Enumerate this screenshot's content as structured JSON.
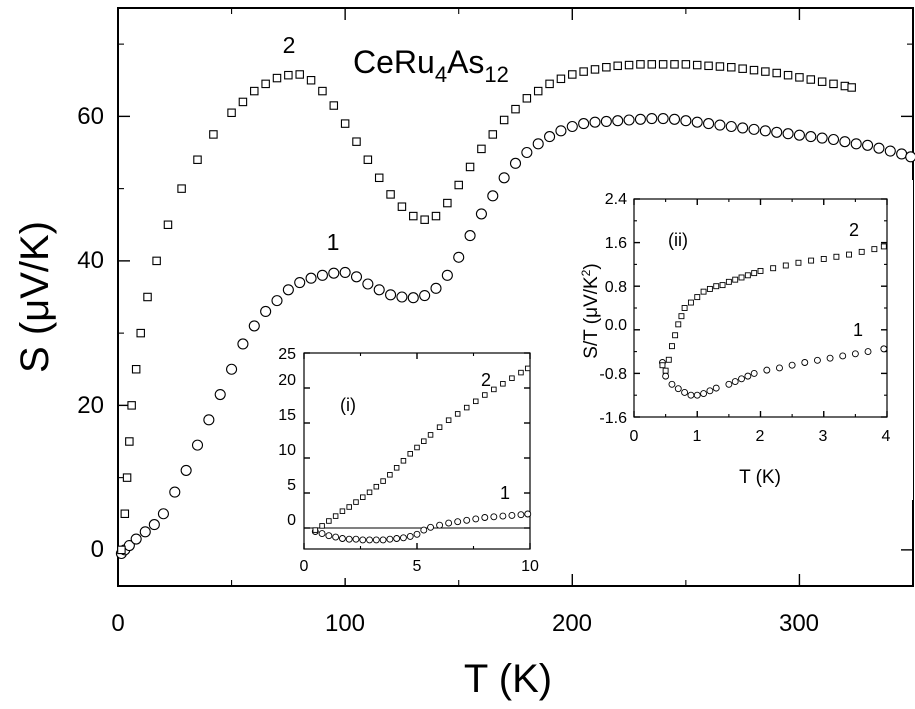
{
  "chart_data": [
    {
      "id": "main",
      "type": "scatter",
      "title": "",
      "xlabel": "T (K)",
      "ylabel": "S (μV/K)",
      "xlim": [
        0,
        350
      ],
      "ylim": [
        -5,
        75
      ],
      "xticks": [
        0,
        100,
        200,
        300
      ],
      "yticks": [
        0,
        20,
        40,
        60
      ],
      "annotation": {
        "base": "CeRu",
        "sub1": "4",
        "mid": "As",
        "sub2": "12"
      },
      "series": [
        {
          "label": "1",
          "marker": "circle",
          "points": [
            [
              1.5,
              -0.5
            ],
            [
              3,
              0
            ],
            [
              5,
              0.6
            ],
            [
              8,
              1.5
            ],
            [
              12,
              2.5
            ],
            [
              16,
              3.5
            ],
            [
              20,
              5
            ],
            [
              25,
              8
            ],
            [
              30,
              11
            ],
            [
              35,
              14.5
            ],
            [
              40,
              18
            ],
            [
              45,
              21.5
            ],
            [
              50,
              25
            ],
            [
              55,
              28.5
            ],
            [
              60,
              31
            ],
            [
              65,
              33
            ],
            [
              70,
              34.5
            ],
            [
              75,
              36
            ],
            [
              80,
              37
            ],
            [
              85,
              37.6
            ],
            [
              90,
              38
            ],
            [
              95,
              38.3
            ],
            [
              100,
              38.4
            ],
            [
              105,
              37.8
            ],
            [
              110,
              36.8
            ],
            [
              115,
              36
            ],
            [
              120,
              35.3
            ],
            [
              125,
              35
            ],
            [
              130,
              34.9
            ],
            [
              135,
              35.2
            ],
            [
              140,
              36.2
            ],
            [
              145,
              38
            ],
            [
              150,
              40.5
            ],
            [
              155,
              43.5
            ],
            [
              160,
              46.5
            ],
            [
              165,
              49
            ],
            [
              170,
              51.5
            ],
            [
              175,
              53.5
            ],
            [
              180,
              55
            ],
            [
              185,
              56.2
            ],
            [
              190,
              57.2
            ],
            [
              195,
              58
            ],
            [
              200,
              58.6
            ],
            [
              205,
              59
            ],
            [
              210,
              59.2
            ],
            [
              215,
              59.3
            ],
            [
              220,
              59.4
            ],
            [
              225,
              59.5
            ],
            [
              230,
              59.6
            ],
            [
              235,
              59.7
            ],
            [
              240,
              59.7
            ],
            [
              245,
              59.6
            ],
            [
              250,
              59.4
            ],
            [
              255,
              59.2
            ],
            [
              260,
              59
            ],
            [
              265,
              58.8
            ],
            [
              270,
              58.6
            ],
            [
              275,
              58.4
            ],
            [
              280,
              58.2
            ],
            [
              285,
              58
            ],
            [
              290,
              57.8
            ],
            [
              295,
              57.6
            ],
            [
              300,
              57.4
            ],
            [
              305,
              57.2
            ],
            [
              310,
              57
            ],
            [
              315,
              56.8
            ],
            [
              320,
              56.5
            ],
            [
              325,
              56.2
            ],
            [
              330,
              56
            ],
            [
              335,
              55.6
            ],
            [
              340,
              55.2
            ],
            [
              345,
              54.8
            ],
            [
              349,
              54.4
            ]
          ]
        },
        {
          "label": "2",
          "marker": "square",
          "points": [
            [
              1.5,
              0
            ],
            [
              3,
              5
            ],
            [
              4,
              10
            ],
            [
              5,
              15
            ],
            [
              6,
              20
            ],
            [
              8,
              25
            ],
            [
              10,
              30
            ],
            [
              13,
              35
            ],
            [
              17,
              40
            ],
            [
              22,
              45
            ],
            [
              28,
              50
            ],
            [
              35,
              54
            ],
            [
              42,
              57.5
            ],
            [
              50,
              60.5
            ],
            [
              55,
              62
            ],
            [
              60,
              63.5
            ],
            [
              65,
              64.5
            ],
            [
              70,
              65.3
            ],
            [
              75,
              65.7
            ],
            [
              80,
              65.8
            ],
            [
              85,
              65
            ],
            [
              90,
              63.5
            ],
            [
              95,
              61.5
            ],
            [
              100,
              59
            ],
            [
              105,
              56.5
            ],
            [
              110,
              54
            ],
            [
              115,
              51.5
            ],
            [
              120,
              49.2
            ],
            [
              125,
              47.5
            ],
            [
              130,
              46.2
            ],
            [
              135,
              45.7
            ],
            [
              140,
              46.2
            ],
            [
              145,
              48
            ],
            [
              150,
              50.5
            ],
            [
              155,
              53
            ],
            [
              160,
              55.5
            ],
            [
              165,
              57.5
            ],
            [
              170,
              59.5
            ],
            [
              175,
              61
            ],
            [
              180,
              62.5
            ],
            [
              185,
              63.5
            ],
            [
              190,
              64.5
            ],
            [
              195,
              65.2
            ],
            [
              200,
              65.8
            ],
            [
              205,
              66.2
            ],
            [
              210,
              66.5
            ],
            [
              215,
              66.8
            ],
            [
              220,
              67
            ],
            [
              225,
              67.1
            ],
            [
              230,
              67.2
            ],
            [
              235,
              67.2
            ],
            [
              240,
              67.2
            ],
            [
              245,
              67.2
            ],
            [
              250,
              67.2
            ],
            [
              255,
              67.1
            ],
            [
              260,
              67
            ],
            [
              265,
              66.9
            ],
            [
              270,
              66.8
            ],
            [
              275,
              66.6
            ],
            [
              280,
              66.4
            ],
            [
              285,
              66.2
            ],
            [
              290,
              66
            ],
            [
              295,
              65.7
            ],
            [
              300,
              65.4
            ],
            [
              305,
              65.1
            ],
            [
              310,
              64.8
            ],
            [
              315,
              64.5
            ],
            [
              320,
              64.2
            ],
            [
              323,
              64
            ]
          ]
        }
      ]
    },
    {
      "id": "inset-i",
      "type": "scatter",
      "title": "(i)",
      "xlabel": "",
      "ylabel": "",
      "xlim": [
        0,
        10
      ],
      "ylim": [
        -3,
        25
      ],
      "xticks": [
        0,
        5,
        10
      ],
      "yticks": [
        0,
        5,
        10,
        15,
        20,
        25
      ],
      "zero_line": true,
      "series": [
        {
          "label": "1",
          "marker": "circle",
          "points": [
            [
              0.5,
              -0.5
            ],
            [
              0.8,
              -0.8
            ],
            [
              1.1,
              -1.1
            ],
            [
              1.4,
              -1.3
            ],
            [
              1.7,
              -1.5
            ],
            [
              2,
              -1.6
            ],
            [
              2.3,
              -1.6
            ],
            [
              2.6,
              -1.7
            ],
            [
              2.9,
              -1.7
            ],
            [
              3.2,
              -1.7
            ],
            [
              3.5,
              -1.7
            ],
            [
              3.8,
              -1.6
            ],
            [
              4.1,
              -1.5
            ],
            [
              4.4,
              -1.4
            ],
            [
              4.7,
              -1.2
            ],
            [
              5,
              -0.9
            ],
            [
              5.3,
              -0.3
            ],
            [
              5.6,
              0.1
            ],
            [
              6,
              0.4
            ],
            [
              6.4,
              0.7
            ],
            [
              6.8,
              0.9
            ],
            [
              7.2,
              1.1
            ],
            [
              7.6,
              1.3
            ],
            [
              8,
              1.5
            ],
            [
              8.4,
              1.6
            ],
            [
              8.8,
              1.7
            ],
            [
              9.2,
              1.8
            ],
            [
              9.6,
              1.9
            ],
            [
              9.9,
              2
            ]
          ]
        },
        {
          "label": "2",
          "marker": "square",
          "points": [
            [
              0.5,
              -0.3
            ],
            [
              0.8,
              0.3
            ],
            [
              1.1,
              1
            ],
            [
              1.4,
              1.7
            ],
            [
              1.7,
              2.4
            ],
            [
              2,
              3
            ],
            [
              2.3,
              3.7
            ],
            [
              2.6,
              4.4
            ],
            [
              2.9,
              5.1
            ],
            [
              3.2,
              5.9
            ],
            [
              3.5,
              6.7
            ],
            [
              3.8,
              7.6
            ],
            [
              4.1,
              8.6
            ],
            [
              4.4,
              9.6
            ],
            [
              4.7,
              10.6
            ],
            [
              5,
              11.5
            ],
            [
              5.3,
              12.4
            ],
            [
              5.6,
              13.3
            ],
            [
              6,
              14.4
            ],
            [
              6.4,
              15.4
            ],
            [
              6.8,
              16.3
            ],
            [
              7.2,
              17.2
            ],
            [
              7.6,
              18.1
            ],
            [
              8,
              19
            ],
            [
              8.4,
              19.8
            ],
            [
              8.8,
              20.6
            ],
            [
              9.2,
              21.4
            ],
            [
              9.6,
              22.2
            ],
            [
              9.9,
              22.8
            ]
          ]
        }
      ]
    },
    {
      "id": "inset-ii",
      "type": "scatter",
      "title": "(ii)",
      "xlabel": "T (K)",
      "ylabel_base": "S/T (μV/K",
      "ylabel_sup": "2",
      "ylabel_end": ")",
      "xlim": [
        0,
        4
      ],
      "ylim": [
        -1.6,
        2.4
      ],
      "xticks": [
        0,
        1,
        2,
        3,
        4
      ],
      "yticks": [
        -1.6,
        -0.8,
        0.0,
        0.8,
        1.6,
        2.4
      ],
      "ytick_labels": [
        "-1.6",
        "-0.8",
        "0.0",
        "0.8",
        "1.6",
        "2.4"
      ],
      "series": [
        {
          "label": "1",
          "marker": "circle",
          "points": [
            [
              0.45,
              -0.6
            ],
            [
              0.5,
              -0.85
            ],
            [
              0.6,
              -1.0
            ],
            [
              0.7,
              -1.08
            ],
            [
              0.8,
              -1.15
            ],
            [
              0.9,
              -1.2
            ],
            [
              1.0,
              -1.2
            ],
            [
              1.1,
              -1.17
            ],
            [
              1.2,
              -1.12
            ],
            [
              1.3,
              -1.07
            ],
            [
              1.5,
              -1.0
            ],
            [
              1.6,
              -0.95
            ],
            [
              1.7,
              -0.9
            ],
            [
              1.8,
              -0.85
            ],
            [
              1.9,
              -0.8
            ],
            [
              2.1,
              -0.74
            ],
            [
              2.3,
              -0.7
            ],
            [
              2.5,
              -0.65
            ],
            [
              2.7,
              -0.6
            ],
            [
              2.9,
              -0.56
            ],
            [
              3.1,
              -0.52
            ],
            [
              3.3,
              -0.48
            ],
            [
              3.5,
              -0.44
            ],
            [
              3.7,
              -0.4
            ],
            [
              3.95,
              -0.35
            ]
          ]
        },
        {
          "label": "2",
          "marker": "square",
          "points": [
            [
              0.45,
              -0.65
            ],
            [
              0.5,
              -0.75
            ],
            [
              0.55,
              -0.55
            ],
            [
              0.6,
              -0.3
            ],
            [
              0.65,
              -0.1
            ],
            [
              0.7,
              0.1
            ],
            [
              0.75,
              0.25
            ],
            [
              0.8,
              0.4
            ],
            [
              0.9,
              0.5
            ],
            [
              1.0,
              0.6
            ],
            [
              1.1,
              0.7
            ],
            [
              1.2,
              0.75
            ],
            [
              1.3,
              0.8
            ],
            [
              1.4,
              0.82
            ],
            [
              1.5,
              0.88
            ],
            [
              1.6,
              0.92
            ],
            [
              1.7,
              0.96
            ],
            [
              1.8,
              1.0
            ],
            [
              1.9,
              1.04
            ],
            [
              2.0,
              1.08
            ],
            [
              2.2,
              1.13
            ],
            [
              2.4,
              1.18
            ],
            [
              2.6,
              1.23
            ],
            [
              2.8,
              1.27
            ],
            [
              3.0,
              1.3
            ],
            [
              3.2,
              1.34
            ],
            [
              3.4,
              1.38
            ],
            [
              3.6,
              1.43
            ],
            [
              3.8,
              1.48
            ],
            [
              3.95,
              1.53
            ]
          ]
        }
      ]
    }
  ]
}
